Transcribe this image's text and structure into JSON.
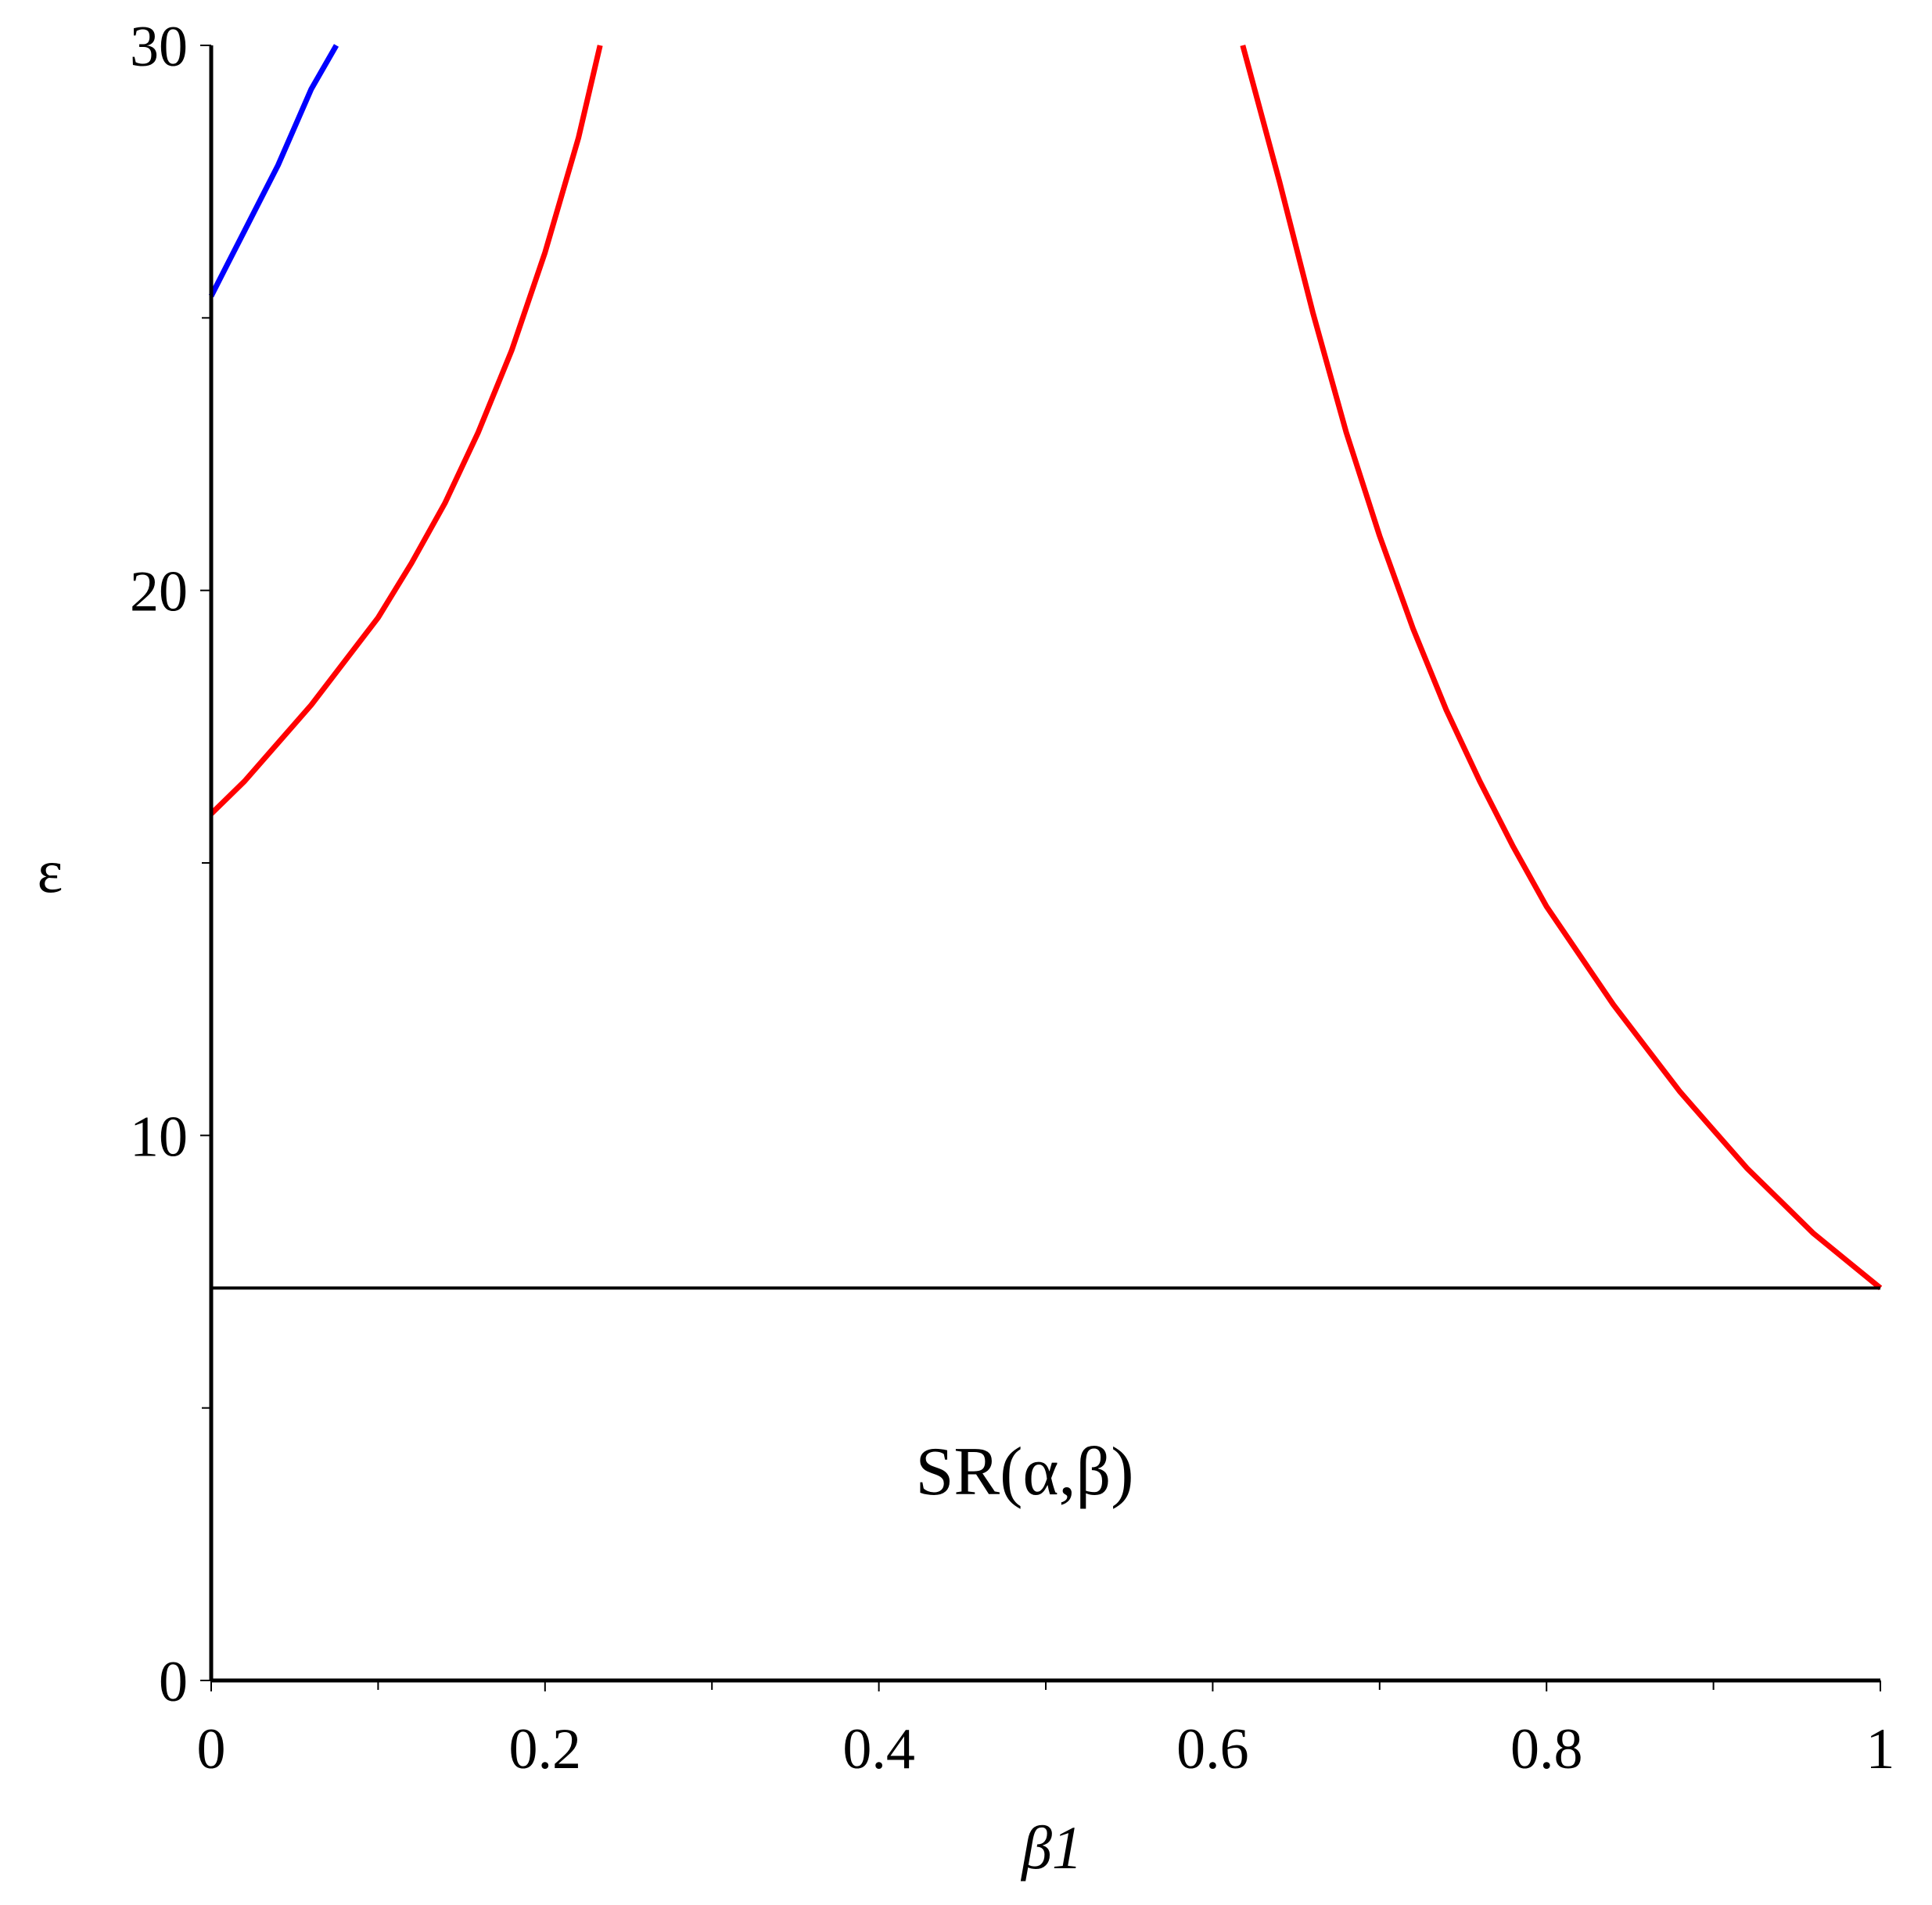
{
  "chart_data": {
    "type": "line",
    "title": "",
    "xlabel": "β1",
    "ylabel": "ε",
    "xlim": [
      0,
      1
    ],
    "ylim": [
      0,
      30
    ],
    "x_ticks": [
      "0",
      "0.2",
      "0.4",
      "0.6",
      "0.8",
      "1"
    ],
    "y_ticks": [
      "0",
      "10",
      "20",
      "30"
    ],
    "grid": false,
    "legend": "none",
    "annotation": "SR(α,β)",
    "series": [
      {
        "color": "#0000ff",
        "points": [
          [
            0,
            25.4
          ],
          [
            0.01,
            26.0
          ],
          [
            0.02,
            26.6
          ],
          [
            0.03,
            27.2
          ],
          [
            0.04,
            27.8
          ],
          [
            0.05,
            28.5
          ],
          [
            0.06,
            29.2
          ],
          [
            0.075,
            30.0
          ]
        ]
      },
      {
        "color": "#ff0000",
        "points": [
          [
            0,
            15.9
          ],
          [
            0.02,
            16.5
          ],
          [
            0.04,
            17.2
          ],
          [
            0.06,
            17.9
          ],
          [
            0.08,
            18.7
          ],
          [
            0.1,
            19.5
          ],
          [
            0.12,
            20.5
          ],
          [
            0.14,
            21.6
          ],
          [
            0.16,
            22.9
          ],
          [
            0.18,
            24.4
          ],
          [
            0.2,
            26.2
          ],
          [
            0.22,
            28.3
          ],
          [
            0.233,
            30.0
          ]
        ]
      },
      {
        "color": "#ff0000",
        "points": [
          [
            0.618,
            30.0
          ],
          [
            0.64,
            27.5
          ],
          [
            0.66,
            25.1
          ],
          [
            0.68,
            22.9
          ],
          [
            0.7,
            21.0
          ],
          [
            0.72,
            19.3
          ],
          [
            0.74,
            17.8
          ],
          [
            0.76,
            16.5
          ],
          [
            0.78,
            15.3
          ],
          [
            0.8,
            14.2
          ],
          [
            0.82,
            13.3
          ],
          [
            0.84,
            12.4
          ],
          [
            0.86,
            11.6
          ],
          [
            0.88,
            10.8
          ],
          [
            0.9,
            10.1
          ],
          [
            0.92,
            9.4
          ],
          [
            0.94,
            8.8
          ],
          [
            0.96,
            8.2
          ],
          [
            0.98,
            7.7
          ],
          [
            1.0,
            7.2
          ]
        ]
      },
      {
        "color": "#000000",
        "points": [
          [
            0,
            7.2
          ],
          [
            1,
            7.2
          ]
        ]
      }
    ]
  }
}
